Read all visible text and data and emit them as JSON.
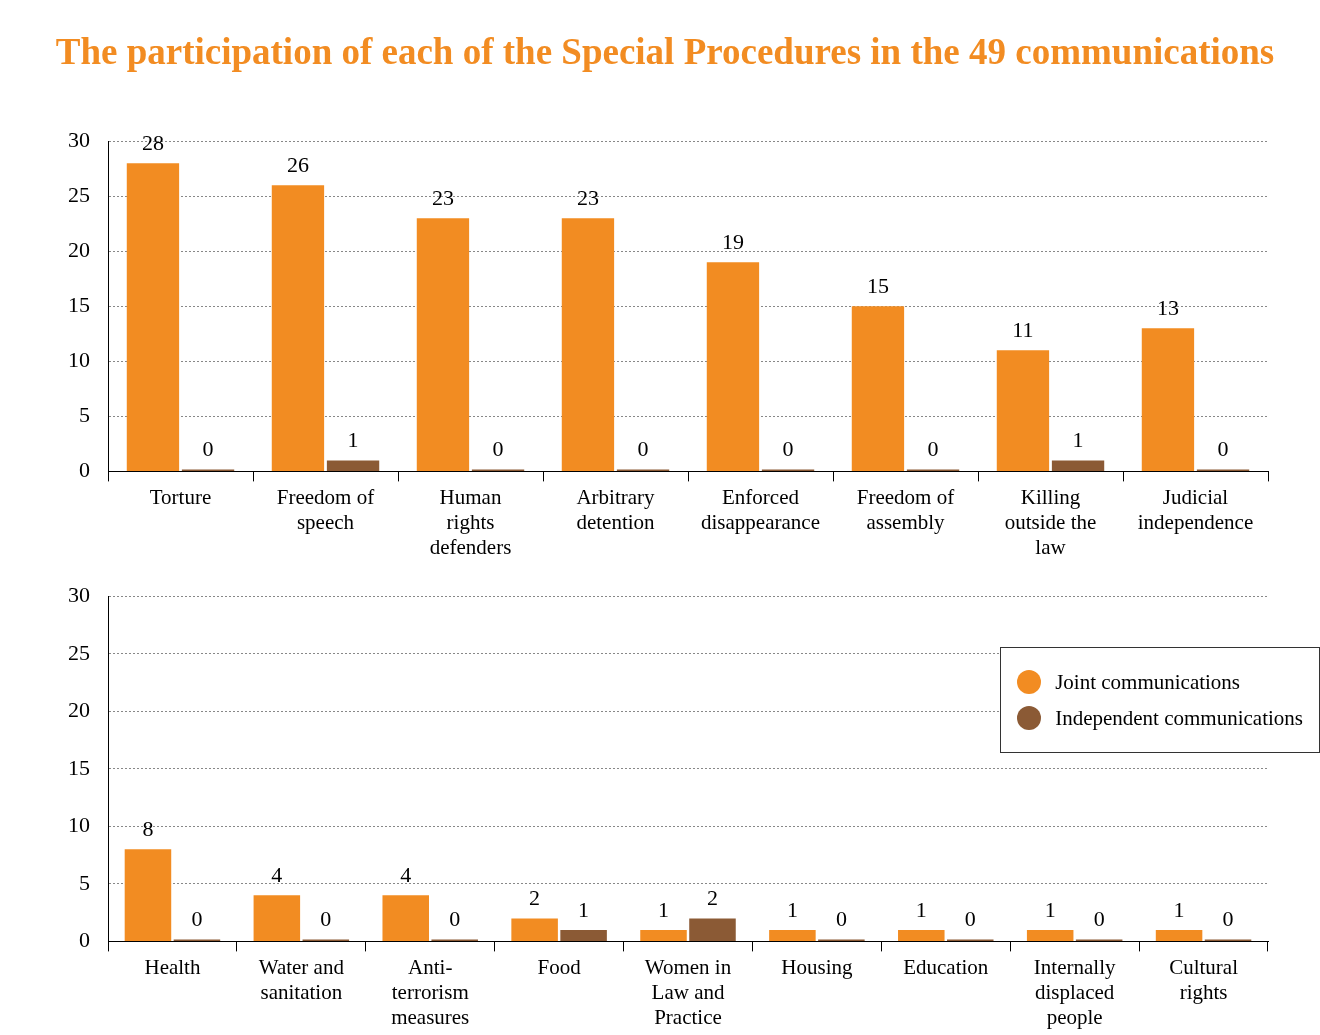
{
  "chart_data": [
    {
      "type": "bar",
      "title": "The participation of each of the Special Procedures in the 49 communications",
      "categories": [
        "Torture",
        "Freedom of speech",
        "Human rights defenders",
        "Arbitrary detention",
        "Enforced disappearance",
        "Freedom of assembly",
        "Killing outside the law",
        "Judicial independence"
      ],
      "series": [
        {
          "color": "#f28c22",
          "values": [
            28,
            26,
            23,
            23,
            19,
            15,
            11,
            13
          ]
        },
        {
          "color": "#8b5a35",
          "values": [
            0,
            1,
            0,
            0,
            0,
            0,
            1,
            0
          ]
        }
      ],
      "ylim": [
        0,
        30
      ],
      "yticks": [
        0,
        5,
        10,
        15,
        20,
        25,
        30
      ],
      "grid": "y",
      "data_labels": true
    },
    {
      "type": "bar",
      "categories": [
        "Health",
        "Water and sanitation",
        "Anti-terrorism measures",
        "Food",
        "Women in Law and Practice",
        "Housing",
        "Education",
        "Internally displaced people",
        "Cultural rights"
      ],
      "series": [
        {
          "name": "Joint communications",
          "color": "#f28c22",
          "values": [
            8,
            4,
            4,
            2,
            1,
            1,
            1,
            1,
            1
          ]
        },
        {
          "name": "Independent communications",
          "color": "#8b5a35",
          "values": [
            0,
            0,
            0,
            1,
            2,
            0,
            0,
            0,
            0
          ]
        }
      ],
      "ylim": [
        0,
        30
      ],
      "yticks": [
        0,
        5,
        10,
        15,
        20,
        25,
        30
      ],
      "grid": "y",
      "data_labels": true,
      "legend": "top right"
    }
  ]
}
